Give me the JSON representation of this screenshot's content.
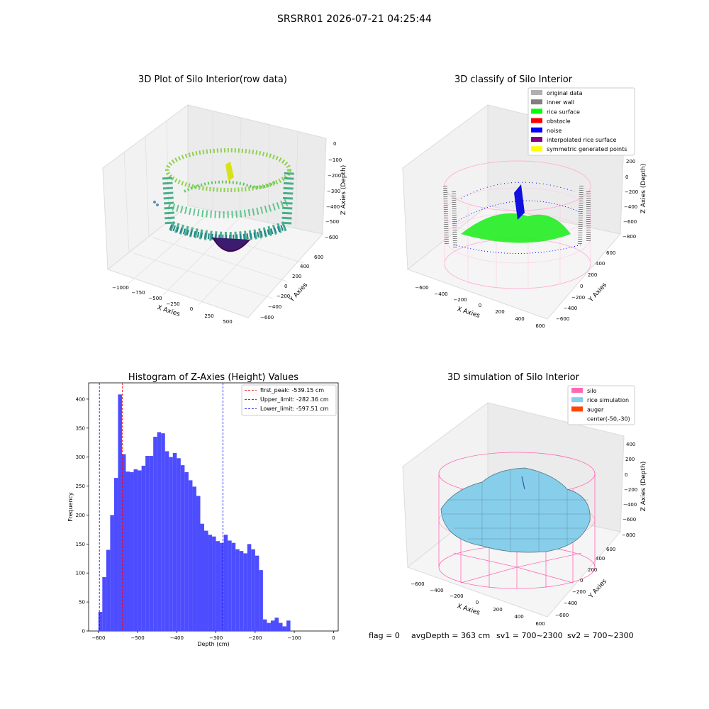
{
  "figure": {
    "suptitle": "SRSRR01 2026-07-21 04:25:44",
    "footer": {
      "flag": "flag = 0",
      "avg_depth": "avgDepth = 363 cm",
      "sv1": "sv1 = 700~2300",
      "sv2": "sv2 = 700~2300"
    }
  },
  "chart_data": [
    {
      "type": "scatter",
      "title": "3D Plot of Silo Interior(row data)",
      "xlabel": "X Axies",
      "ylabel": "Y Axies",
      "zlabel": "Z Axies (Depth)",
      "x_ticks": [
        "−1000",
        "−750",
        "−500",
        "−250",
        "0",
        "250",
        "500"
      ],
      "y_ticks": [
        "−600",
        "−400",
        "−200",
        "0",
        "200",
        "400",
        "600"
      ],
      "z_ticks": [
        "0",
        "−100",
        "−200",
        "−300",
        "−400",
        "−500",
        "−600"
      ],
      "colormap": "viridis",
      "colors": {
        "low": "#440154",
        "mid": "#21918c",
        "high": "#b5de2b"
      }
    },
    {
      "type": "scatter",
      "title": "3D classify of Silo Interior",
      "xlabel": "X Axies",
      "ylabel": "Y Axies",
      "zlabel": "Z Axies (Depth)",
      "x_ticks": [
        "−600",
        "−400",
        "−200",
        "0",
        "200",
        "400",
        "600"
      ],
      "y_ticks": [
        "−600",
        "−400",
        "−200",
        "0",
        "200",
        "400",
        "600"
      ],
      "z_ticks": [
        "200",
        "0",
        "−200",
        "−400",
        "−600",
        "−800"
      ],
      "legend": [
        {
          "label": "original data",
          "color": "#b0b0b0"
        },
        {
          "label": "inner wall",
          "color": "#808080"
        },
        {
          "label": "rice surface",
          "color": "#00ff00"
        },
        {
          "label": "obstacle",
          "color": "#ff0000"
        },
        {
          "label": "noise",
          "color": "#0000ff"
        },
        {
          "label": "interpolated rice surface",
          "color": "#800080"
        },
        {
          "label": "symmetric generated points",
          "color": "#ffff00"
        }
      ],
      "legend_position": "top-right"
    },
    {
      "type": "bar",
      "title": "Histogram of Z-Axies (Height) Values",
      "xlabel": "Depth (cm)",
      "ylabel": "Frequency",
      "bin_width": 10,
      "bin_start": -600,
      "values": [
        33,
        93,
        140,
        200,
        264,
        408,
        305,
        275,
        274,
        279,
        277,
        285,
        302,
        302,
        335,
        343,
        341,
        310,
        300,
        307,
        298,
        286,
        274,
        260,
        249,
        233,
        185,
        173,
        166,
        163,
        155,
        152,
        166,
        156,
        152,
        141,
        138,
        134,
        150,
        141,
        130,
        105,
        20,
        14,
        18,
        23,
        14,
        8,
        18
      ],
      "xlim": [
        -625,
        12
      ],
      "ylim": [
        0,
        428
      ],
      "x_ticks": [
        -600,
        -500,
        -400,
        -300,
        -200,
        -100,
        0
      ],
      "y_ticks": [
        0,
        50,
        100,
        150,
        200,
        250,
        300,
        350,
        400
      ],
      "bar_color": "#4d4dff",
      "vlines": [
        {
          "label": "first_peak: -539.15 cm",
          "x": -539.15,
          "color": "#ff0000"
        },
        {
          "label": "Upper_limit: -282.36 cm",
          "x": -282.36,
          "color": "#0000ff"
        },
        {
          "label": "Lower_limit: -597.51 cm",
          "x": -597.51,
          "color": "#0000ff"
        }
      ],
      "legend_position": "top-right"
    },
    {
      "type": "area",
      "title": "3D simulation of Silo Interior",
      "xlabel": "X Axies",
      "ylabel": "Y Axies",
      "zlabel": "Z Axies (Depth)",
      "x_ticks": [
        "−600",
        "−400",
        "−200",
        "0",
        "200",
        "400",
        "600"
      ],
      "y_ticks": [
        "−600",
        "−400",
        "−200",
        "0",
        "200",
        "400",
        "600"
      ],
      "z_ticks": [
        "400",
        "200",
        "0",
        "−200",
        "−400",
        "−600",
        "−800"
      ],
      "legend": [
        {
          "label": "silo",
          "color": "#ff69b4"
        },
        {
          "label": "rice simulation",
          "color": "#87ceeb"
        },
        {
          "label": "auger",
          "color": "#ff4500"
        },
        {
          "label": "center(-50,-30)",
          "color": ""
        }
      ],
      "legend_position": "top-right"
    }
  ]
}
